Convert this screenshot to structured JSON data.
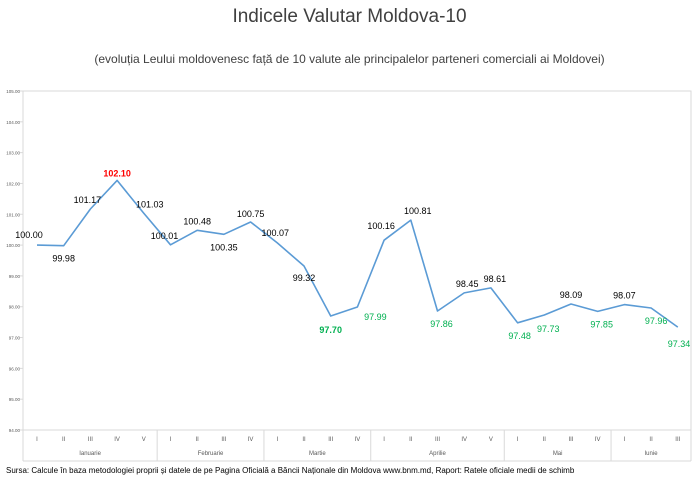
{
  "title": "Indicele Valutar Moldova-10",
  "subtitle": "(evoluția Leului moldovenesc față de 10 valute ale principalelor parteneri comerciali ai Moldovei)",
  "source": "Sursa: Calcule în baza metodologiei proprii și datele de pe Pagina Oficială a Băncii Naționale din Moldova www.bnm.md, Raport: Ratele oficiale medii de schimb",
  "colors": {
    "line": "#5b9bd5",
    "max_label": "#ff0000",
    "low_label": "#00b050",
    "normal_label": "#000000",
    "grid": "#d9d9d9"
  },
  "chart_data": {
    "type": "line",
    "title": "Indicele Valutar Moldova-10",
    "subtitle": "(evoluția Leului moldovenesc față de 10 valute ale principalelor parteneri comerciali ai Moldovei)",
    "ylim": [
      94.0,
      105.0
    ],
    "yticks": [
      "94.00",
      "95.00",
      "96.00",
      "97.00",
      "98.00",
      "99.00",
      "100.00",
      "101.00",
      "102.00",
      "103.00",
      "104.00",
      "105.00"
    ],
    "grid": "vertical month separators",
    "months": [
      {
        "name": "Ianuarie",
        "weeks": [
          "I",
          "II",
          "III",
          "IV",
          "V"
        ]
      },
      {
        "name": "Februarie",
        "weeks": [
          "I",
          "II",
          "III",
          "IV"
        ]
      },
      {
        "name": "Martie",
        "weeks": [
          "I",
          "II",
          "III",
          "IV"
        ]
      },
      {
        "name": "Aprilie",
        "weeks": [
          "I",
          "II",
          "III",
          "IV",
          "V"
        ]
      },
      {
        "name": "Mai",
        "weeks": [
          "I",
          "II",
          "III",
          "IV"
        ]
      },
      {
        "name": "Iunie",
        "weeks": [
          "I",
          "II",
          "III"
        ]
      }
    ],
    "values": [
      100.0,
      99.98,
      101.17,
      102.1,
      101.03,
      100.01,
      100.48,
      100.35,
      100.75,
      100.07,
      99.32,
      97.7,
      97.99,
      100.16,
      100.81,
      97.86,
      98.45,
      98.61,
      97.48,
      97.73,
      98.09,
      97.85,
      98.07,
      97.96,
      97.34
    ],
    "data_labels": [
      "100.00",
      "99.98",
      "101.17",
      "102.10",
      "101.03",
      "100.01",
      "100.48",
      "100.35",
      "100.75",
      "100.07",
      "99.32",
      "97.70",
      "97.99",
      "100.16",
      "100.81",
      "97.86",
      "98.45",
      "98.61",
      "97.48",
      "97.73",
      "98.09",
      "97.85",
      "98.07",
      "97.96",
      "97.34"
    ],
    "label_styles": [
      "normal",
      "normal",
      "normal",
      "max",
      "normal",
      "normal",
      "normal",
      "normal",
      "normal",
      "normal",
      "normal",
      "low-bold",
      "low",
      "normal",
      "normal",
      "low",
      "normal",
      "normal",
      "low",
      "low",
      "normal",
      "low",
      "normal",
      "low",
      "low"
    ]
  }
}
